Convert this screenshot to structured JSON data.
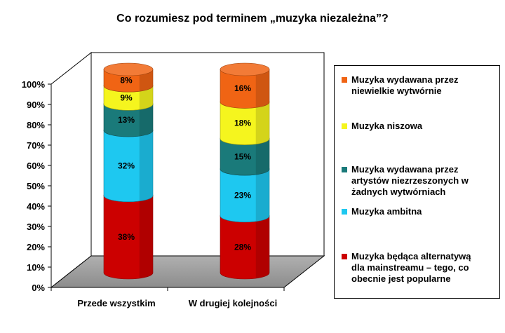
{
  "chart_data": {
    "type": "bar",
    "stacked": true,
    "percent": true,
    "style": "3d-cylinder",
    "title": "Co rozumiesz pod terminem „muzyka niezależna”?",
    "categories": [
      "Przede wszystkim",
      "W drugiej kolejności"
    ],
    "ylim": [
      0,
      100
    ],
    "yticks": [
      "0%",
      "10%",
      "20%",
      "30%",
      "40%",
      "50%",
      "60%",
      "70%",
      "80%",
      "90%",
      "100%"
    ],
    "legend_position": "right",
    "series": [
      {
        "name": "Muzyka będąca alternatywą dla mainstreamu – tego, co obecnie jest popularne",
        "values": [
          38,
          28
        ],
        "color": "#cc0000",
        "labels": [
          "38%",
          "28%"
        ]
      },
      {
        "name": "Muzyka ambitna",
        "values": [
          32,
          23
        ],
        "color": "#1ec8f0",
        "labels": [
          "32%",
          "23%"
        ]
      },
      {
        "name": "Muzyka wydawana przez artystów niezrzeszonych w żadnych wytwórniach",
        "values": [
          13,
          15
        ],
        "color": "#1a7a7a",
        "labels": [
          "13%",
          "15%"
        ]
      },
      {
        "name": "Muzyka niszowa",
        "values": [
          9,
          18
        ],
        "color": "#f5f51e",
        "labels": [
          "9%",
          "18%"
        ]
      },
      {
        "name": "Muzyka wydawana przez niewielkie wytwórnie",
        "values": [
          8,
          16
        ],
        "color": "#f06414",
        "labels": [
          "8%",
          "16%"
        ]
      }
    ]
  },
  "legend": {
    "items": [
      {
        "lines": [
          "Muzyka wydawana przez",
          "niewielkie wytwórnie"
        ],
        "color": "#f06414"
      },
      {
        "lines": [
          "Muzyka niszowa"
        ],
        "color": "#f5f51e"
      },
      {
        "lines": [
          "Muzyka wydawana przez",
          "artystów niezrzeszonych w",
          "żadnych wytwórniach"
        ],
        "color": "#1a7a7a"
      },
      {
        "lines": [
          "Muzyka ambitna"
        ],
        "color": "#1ec8f0"
      },
      {
        "lines": [
          "Muzyka będąca alternatywą",
          "dla mainstreamu – tego, co",
          "obecnie jest popularne"
        ],
        "color": "#cc0000"
      }
    ]
  }
}
